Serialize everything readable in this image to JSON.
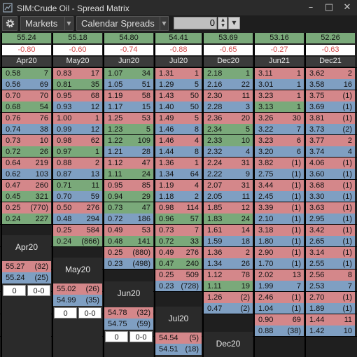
{
  "window": {
    "title": "SIM:Crude Oil - Spread Matrix",
    "min_glyph": "–",
    "max_glyph": "□",
    "close_glyph": "✕"
  },
  "toolbar": {
    "markets_label": "Markets",
    "calendar_label": "Calendar Spreads",
    "quantity_value": "0",
    "dropdown_glyph": "▼",
    "spin_up": "▲",
    "spin_down": "▼"
  },
  "months": [
    "Apr20",
    "May20",
    "Jun20",
    "Jul20",
    "Dec20",
    "Jun21",
    "Dec21"
  ],
  "prices": [
    "55.24",
    "55.18",
    "54.80",
    "54.41",
    "53.69",
    "53.16",
    "52.26"
  ],
  "changes": [
    "-0.80",
    "-0.60",
    "-0.74",
    "-0.88",
    "-0.65",
    "-0.27",
    "-0.63"
  ],
  "matrix": [
    [
      [
        [
          "0.58",
          "7"
        ],
        [
          "0.56",
          "69"
        ]
      ],
      [
        [
          "0.83",
          "17"
        ],
        [
          "0.81",
          "35"
        ]
      ],
      [
        [
          "1.07",
          "34"
        ],
        [
          "1.05",
          "51"
        ]
      ],
      [
        [
          "1.31",
          "1"
        ],
        [
          "1.29",
          "5"
        ]
      ],
      [
        [
          "2.18",
          "1"
        ],
        [
          "2.16",
          "22"
        ]
      ],
      [
        [
          "3.11",
          "1"
        ],
        [
          "3.01",
          "1"
        ]
      ],
      [
        [
          "3.62",
          "2"
        ],
        [
          "3.58",
          "16"
        ]
      ]
    ],
    [
      [
        [
          "0.70",
          "70"
        ],
        [
          "0.68",
          "54"
        ]
      ],
      [
        [
          "0.95",
          "68"
        ],
        [
          "0.93",
          "12"
        ]
      ],
      [
        [
          "1.19",
          "58"
        ],
        [
          "1.17",
          "15"
        ]
      ],
      [
        [
          "1.43",
          "50"
        ],
        [
          "1.40",
          "50"
        ]
      ],
      [
        [
          "2.30",
          "11"
        ],
        [
          "2.28",
          "3"
        ]
      ],
      [
        [
          "3.23",
          "1"
        ],
        [
          "3.13",
          "1"
        ]
      ],
      [
        [
          "3.75",
          "(1)"
        ],
        [
          "3.69",
          "(1)"
        ]
      ]
    ],
    [
      [
        [
          "0.76",
          "76"
        ],
        [
          "0.74",
          "38"
        ]
      ],
      [
        [
          "1.00",
          "1"
        ],
        [
          "0.99",
          "12"
        ]
      ],
      [
        [
          "1.25",
          "53"
        ],
        [
          "1.23",
          "5"
        ]
      ],
      [
        [
          "1.49",
          "5"
        ],
        [
          "1.46",
          "8"
        ]
      ],
      [
        [
          "2.36",
          "20"
        ],
        [
          "2.34",
          "5"
        ]
      ],
      [
        [
          "3.26",
          "30"
        ],
        [
          "3.22",
          "7"
        ]
      ],
      [
        [
          "3.81",
          "(1)"
        ],
        [
          "3.73",
          "(2)"
        ]
      ]
    ],
    [
      [
        [
          "0.73",
          "10"
        ],
        [
          "0.72",
          "26"
        ]
      ],
      [
        [
          "0.98",
          "62"
        ],
        [
          "0.97",
          "1"
        ]
      ],
      [
        [
          "1.22",
          "109"
        ],
        [
          "1.21",
          "28"
        ]
      ],
      [
        [
          "1.46",
          "4"
        ],
        [
          "1.44",
          "8"
        ]
      ],
      [
        [
          "2.33",
          "10"
        ],
        [
          "2.32",
          "4"
        ]
      ],
      [
        [
          "3.23",
          "6"
        ],
        [
          "3.20",
          "6"
        ]
      ],
      [
        [
          "3.77",
          "2"
        ],
        [
          "3.74",
          "4"
        ]
      ]
    ],
    [
      [
        [
          "0.64",
          "219"
        ],
        [
          "0.62",
          "103"
        ]
      ],
      [
        [
          "0.88",
          "2"
        ],
        [
          "0.87",
          "13"
        ]
      ],
      [
        [
          "1.12",
          "47"
        ],
        [
          "1.11",
          "24"
        ]
      ],
      [
        [
          "1.36",
          "1"
        ],
        [
          "1.34",
          "64"
        ]
      ],
      [
        [
          "2.24",
          "31"
        ],
        [
          "2.22",
          "9"
        ]
      ],
      [
        [
          "3.82",
          "(1)"
        ],
        [
          "2.75",
          "(1)"
        ]
      ],
      [
        [
          "4.06",
          "(1)"
        ],
        [
          "3.60",
          "(1)"
        ]
      ]
    ],
    [
      [
        [
          "0.47",
          "260"
        ],
        [
          "0.45",
          "321"
        ]
      ],
      [
        [
          "0.71",
          "11"
        ],
        [
          "0.70",
          "59"
        ]
      ],
      [
        [
          "0.95",
          "85"
        ],
        [
          "0.94",
          "29"
        ]
      ],
      [
        [
          "1.19",
          "4"
        ],
        [
          "1.18",
          "2"
        ]
      ],
      [
        [
          "2.07",
          "31"
        ],
        [
          "2.05",
          "11"
        ]
      ],
      [
        [
          "3.44",
          "(1)"
        ],
        [
          "2.45",
          "(1)"
        ]
      ],
      [
        [
          "3.68",
          "(1)"
        ],
        [
          "3.30",
          "(1)"
        ]
      ]
    ],
    [
      [
        [
          "0.25",
          "(770)"
        ],
        [
          "0.24",
          "227"
        ]
      ],
      [
        [
          "0.50",
          "276"
        ],
        [
          "0.48",
          "294"
        ]
      ],
      [
        [
          "0.73",
          "47"
        ],
        [
          "0.72",
          "186"
        ]
      ],
      [
        [
          "0.98",
          "114"
        ],
        [
          "0.96",
          "57"
        ]
      ],
      [
        [
          "1.85",
          "12"
        ],
        [
          "1.83",
          "24"
        ]
      ],
      [
        [
          "3.39",
          "(1)"
        ],
        [
          "2.10",
          "(1)"
        ]
      ],
      [
        [
          "3.63",
          "(1)"
        ],
        [
          "2.95",
          "(1)"
        ]
      ]
    ],
    [
      null,
      [
        [
          "0.25",
          "584"
        ],
        [
          "0.24",
          "(866)"
        ]
      ],
      [
        [
          "0.49",
          "53"
        ],
        [
          "0.48",
          "141"
        ]
      ],
      [
        [
          "0.73",
          "7"
        ],
        [
          "0.72",
          "33"
        ]
      ],
      [
        [
          "1.61",
          "14"
        ],
        [
          "1.59",
          "18"
        ]
      ],
      [
        [
          "3.18",
          "(1)"
        ],
        [
          "1.80",
          "(1)"
        ]
      ],
      [
        [
          "3.42",
          "(1)"
        ],
        [
          "2.65",
          "(1)"
        ]
      ]
    ],
    [
      null,
      null,
      [
        [
          "0.25",
          "(880)"
        ],
        [
          "0.23",
          "(498)"
        ]
      ],
      [
        [
          "0.49",
          "276"
        ],
        [
          "0.47",
          "240"
        ]
      ],
      [
        [
          "1.36",
          "2"
        ],
        [
          "1.34",
          "26"
        ]
      ],
      [
        [
          "2.90",
          "(1)"
        ],
        [
          "1.70",
          "(1)"
        ]
      ],
      [
        [
          "3.14",
          "(1)"
        ],
        [
          "2.55",
          "(1)"
        ]
      ]
    ],
    [
      null,
      null,
      null,
      [
        [
          "0.25",
          "509"
        ],
        [
          "0.23",
          "(728)"
        ]
      ],
      [
        [
          "1.12",
          "78"
        ],
        [
          "1.11",
          "19"
        ]
      ],
      [
        [
          "2.02",
          "13"
        ],
        [
          "1.99",
          "7"
        ]
      ],
      [
        [
          "2.56",
          "8"
        ],
        [
          "2.53",
          "7"
        ]
      ]
    ],
    [
      null,
      null,
      null,
      null,
      [
        [
          "1.26",
          "(2)"
        ],
        [
          "0.47",
          "(2)"
        ]
      ],
      [
        [
          "2.46",
          "(1)"
        ],
        [
          "1.04",
          "(1)"
        ]
      ],
      [
        [
          "2.70",
          "(1)"
        ],
        [
          "1.89",
          "(1)"
        ]
      ]
    ],
    [
      null,
      null,
      null,
      null,
      null,
      [
        [
          "0.90",
          "69"
        ],
        [
          "0.88",
          "(38)"
        ]
      ],
      [
        [
          "1.44",
          "11"
        ],
        [
          "1.42",
          "10"
        ]
      ]
    ]
  ],
  "green_cells": [
    [
      0,
      0,
      "b"
    ],
    [
      0,
      1,
      "a"
    ],
    [
      0,
      2,
      "b"
    ],
    [
      0,
      4,
      "b"
    ],
    [
      1,
      0,
      "a"
    ],
    [
      1,
      5,
      "a"
    ],
    [
      2,
      2,
      "a"
    ],
    [
      2,
      4,
      "a"
    ],
    [
      3,
      2,
      "b"
    ],
    [
      3,
      4,
      "b"
    ],
    [
      3,
      0,
      "a"
    ],
    [
      3,
      1,
      "a"
    ],
    [
      4,
      2,
      "a"
    ],
    [
      5,
      0,
      "a"
    ],
    [
      5,
      1,
      "b"
    ],
    [
      5,
      2,
      "a"
    ],
    [
      6,
      0,
      "a"
    ],
    [
      6,
      2,
      "b"
    ],
    [
      6,
      3,
      "a"
    ],
    [
      6,
      4,
      "a"
    ],
    [
      7,
      1,
      "a"
    ],
    [
      7,
      2,
      "a"
    ],
    [
      7,
      3,
      "a"
    ],
    [
      8,
      3,
      "a"
    ],
    [
      9,
      4,
      "a"
    ]
  ],
  "futures": [
    {
      "label": "Apr20",
      "bid": "55.27",
      "bid_qty": "(32)",
      "ask": "55.24",
      "ask_qty": "(25)",
      "pos": "0",
      "pnl": "0-0"
    },
    {
      "label": "May20",
      "bid": "55.02",
      "bid_qty": "(26)",
      "ask": "54.99",
      "ask_qty": "(35)",
      "pos": "0",
      "pnl": "0-0"
    },
    {
      "label": "Jun20",
      "bid": "54.78",
      "bid_qty": "(32)",
      "ask": "54.75",
      "ask_qty": "(59)",
      "pos": "0",
      "pnl": "0-0"
    },
    {
      "label": "Jul20",
      "bid": "54.54",
      "bid_qty": "(5)",
      "ask": "54.51",
      "ask_qty": "(18)",
      "pos": "",
      "pnl": ""
    },
    {
      "label": "Dec20",
      "bid": "",
      "bid_qty": "",
      "ask": "",
      "ask_qty": "",
      "pos": "",
      "pnl": ""
    }
  ]
}
